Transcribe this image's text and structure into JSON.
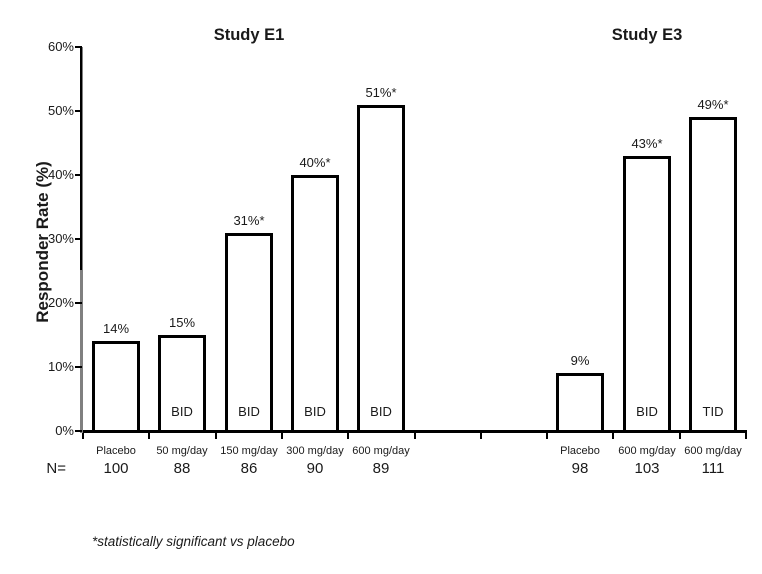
{
  "chart_data": {
    "type": "bar",
    "ylabel": "Responder Rate (%)",
    "ylim": [
      0,
      60
    ],
    "ytick_values": [
      0,
      10,
      20,
      30,
      40,
      50,
      60
    ],
    "ytick_labels": [
      "0%",
      "10%",
      "20%",
      "30%",
      "40%",
      "50%",
      "60%"
    ],
    "n_row_label": "N=",
    "footnote": "*statistically significant vs placebo",
    "grid": false,
    "legend": "none",
    "gap_slots_between_groups": 2,
    "bar_style": {
      "fill": "#ffffff",
      "border": "#000000"
    },
    "groups": [
      {
        "title": "Study E1",
        "bars": [
          {
            "category": "Placebo",
            "n": 100,
            "value": 14,
            "label": "14%",
            "dose_label": ""
          },
          {
            "category": "50 mg/day",
            "n": 88,
            "value": 15,
            "label": "15%",
            "dose_label": "BID"
          },
          {
            "category": "150 mg/day",
            "n": 86,
            "value": 31,
            "label": "31%*",
            "dose_label": "BID"
          },
          {
            "category": "300 mg/day",
            "n": 90,
            "value": 40,
            "label": "40%*",
            "dose_label": "BID"
          },
          {
            "category": "600 mg/day",
            "n": 89,
            "value": 51,
            "label": "51%*",
            "dose_label": "BID"
          }
        ]
      },
      {
        "title": "Study E3",
        "bars": [
          {
            "category": "Placebo",
            "n": 98,
            "value": 9,
            "label": "9%",
            "dose_label": ""
          },
          {
            "category": "600 mg/day",
            "n": 103,
            "value": 43,
            "label": "43%*",
            "dose_label": "BID"
          },
          {
            "category": "600 mg/day",
            "n": 111,
            "value": 49,
            "label": "49%*",
            "dose_label": "TID"
          }
        ]
      }
    ]
  },
  "colors": {
    "background": "#ffffff",
    "bar_fill": "#ffffff",
    "bar_border": "#000000",
    "axis_black": "#000000",
    "axis_gray": "#808080",
    "text": "#1a1a1a"
  }
}
